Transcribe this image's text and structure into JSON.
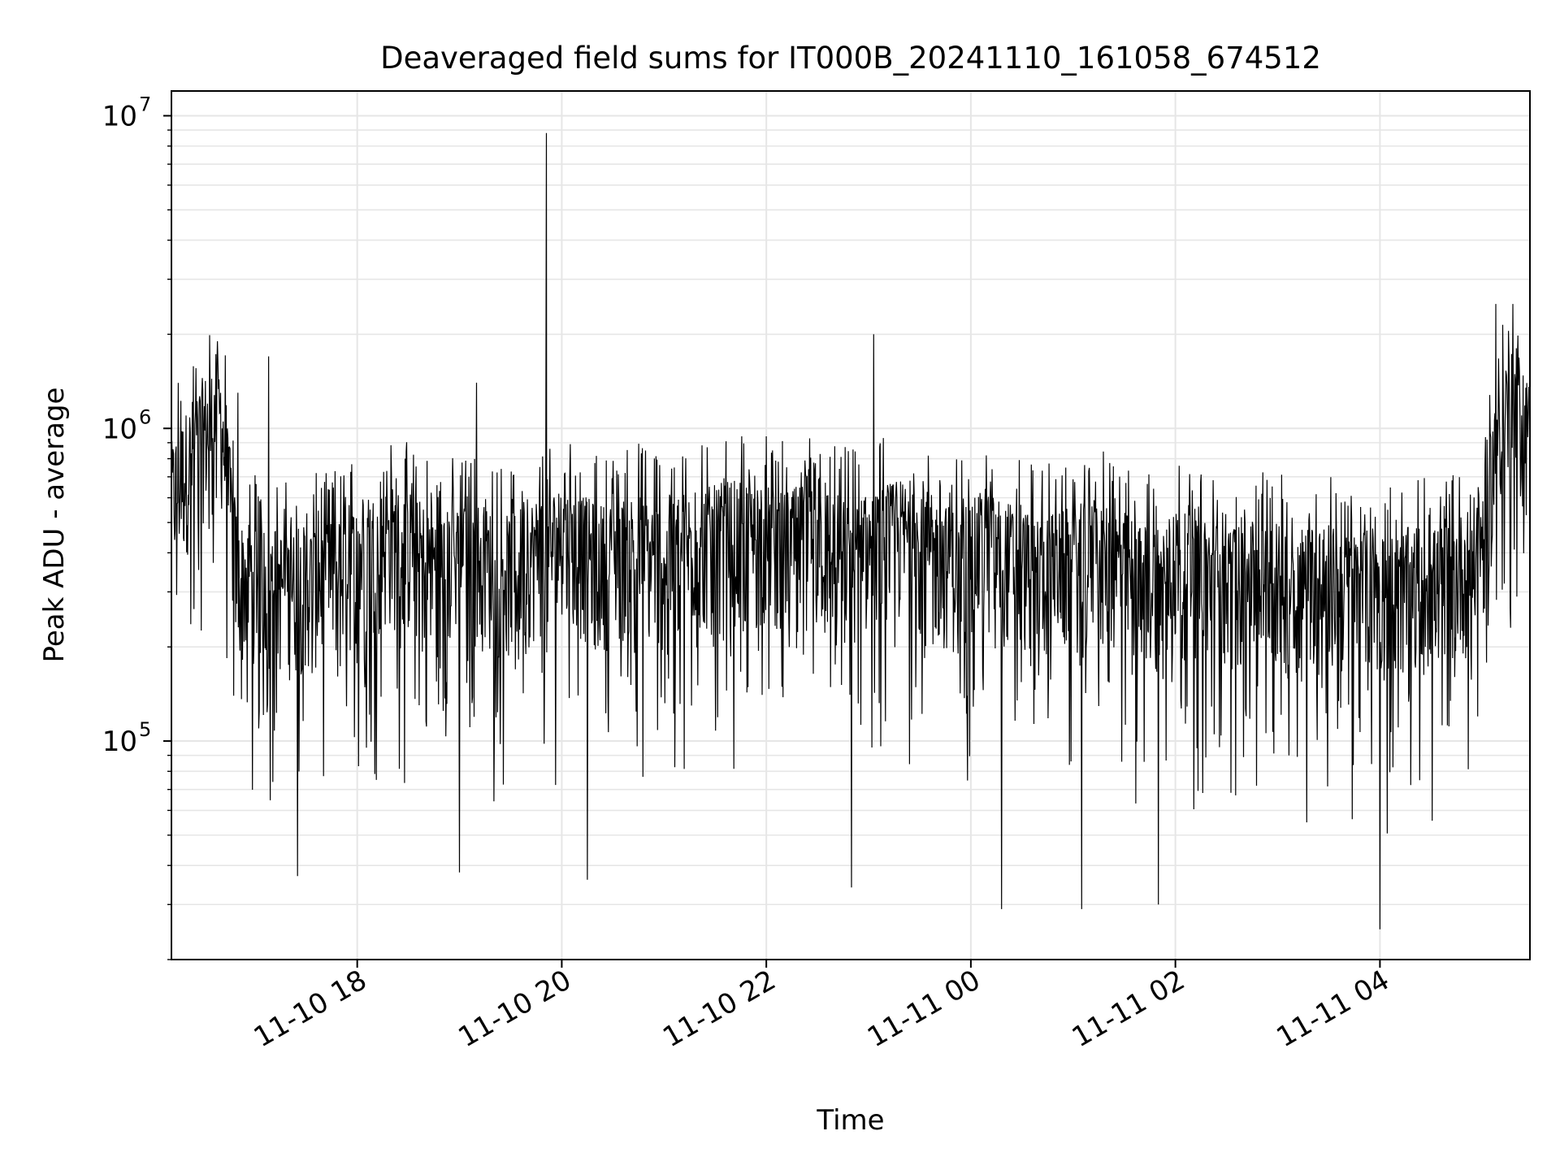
{
  "chart_data": {
    "type": "line",
    "title": "Deaveraged field sums for IT000B_20241110_161058_674512",
    "xlabel": "Time",
    "ylabel": "Peak ADU - average",
    "yscale": "log",
    "ylim": [
      20000,
      12000000
    ],
    "xlim": [
      "2024-11-10T16:11",
      "2024-11-11T05:28"
    ],
    "grid": true,
    "x_ticks": [
      {
        "value": "2024-11-10T18:00",
        "label": "11-10 18"
      },
      {
        "value": "2024-11-10T20:00",
        "label": "11-10 20"
      },
      {
        "value": "2024-11-10T22:00",
        "label": "11-10 22"
      },
      {
        "value": "2024-11-11T00:00",
        "label": "11-11 00"
      },
      {
        "value": "2024-11-11T02:00",
        "label": "11-11 02"
      },
      {
        "value": "2024-11-11T04:00",
        "label": "11-11 04"
      }
    ],
    "y_ticks": [
      {
        "value": 100000,
        "base": "10",
        "exp": "5"
      },
      {
        "value": 1000000,
        "base": "10",
        "exp": "6"
      },
      {
        "value": 10000000,
        "base": "10",
        "exp": "7"
      }
    ],
    "series": [
      {
        "color": "#000000",
        "x": [
          "2024-11-10T16:11",
          "2024-11-10T16:20",
          "2024-11-10T16:30",
          "2024-11-10T16:40",
          "2024-11-10T16:50",
          "2024-11-10T17:00",
          "2024-11-10T17:10",
          "2024-11-10T17:20",
          "2024-11-10T17:30",
          "2024-11-10T17:40",
          "2024-11-10T17:50",
          "2024-11-10T18:00",
          "2024-11-10T18:10",
          "2024-11-10T18:20",
          "2024-11-10T18:30",
          "2024-11-10T18:40",
          "2024-11-10T18:50",
          "2024-11-10T19:00",
          "2024-11-10T19:10",
          "2024-11-10T19:20",
          "2024-11-10T19:30",
          "2024-11-10T19:40",
          "2024-11-10T19:50",
          "2024-11-10T20:00",
          "2024-11-10T20:10",
          "2024-11-10T20:20",
          "2024-11-10T20:30",
          "2024-11-10T20:40",
          "2024-11-10T20:50",
          "2024-11-10T21:00",
          "2024-11-10T21:10",
          "2024-11-10T21:20",
          "2024-11-10T21:30",
          "2024-11-10T21:40",
          "2024-11-10T21:50",
          "2024-11-10T22:00",
          "2024-11-10T22:10",
          "2024-11-10T22:20",
          "2024-11-10T22:30",
          "2024-11-10T22:40",
          "2024-11-10T22:50",
          "2024-11-10T23:00",
          "2024-11-10T23:10",
          "2024-11-10T23:20",
          "2024-11-10T23:30",
          "2024-11-10T23:40",
          "2024-11-10T23:50",
          "2024-11-11T00:00",
          "2024-11-11T00:10",
          "2024-11-11T00:20",
          "2024-11-11T00:30",
          "2024-11-11T00:40",
          "2024-11-11T00:50",
          "2024-11-11T01:00",
          "2024-11-11T01:10",
          "2024-11-11T01:20",
          "2024-11-11T01:30",
          "2024-11-11T01:40",
          "2024-11-11T01:50",
          "2024-11-11T02:00",
          "2024-11-11T02:10",
          "2024-11-11T02:20",
          "2024-11-11T02:30",
          "2024-11-11T02:40",
          "2024-11-11T02:50",
          "2024-11-11T03:00",
          "2024-11-11T03:10",
          "2024-11-11T03:20",
          "2024-11-11T03:30",
          "2024-11-11T03:40",
          "2024-11-11T03:50",
          "2024-11-11T04:00",
          "2024-11-11T04:10",
          "2024-11-11T04:20",
          "2024-11-11T04:30",
          "2024-11-11T04:40",
          "2024-11-11T04:50",
          "2024-11-11T05:00",
          "2024-11-11T05:10",
          "2024-11-11T05:20",
          "2024-11-11T05:28"
        ],
        "y": [
          550000,
          700000,
          900000,
          1000000,
          300000,
          320000,
          300000,
          280000,
          300000,
          300000,
          320000,
          350000,
          380000,
          400000,
          380000,
          350000,
          330000,
          350000,
          360000,
          330000,
          320000,
          360000,
          380000,
          400000,
          380000,
          350000,
          350000,
          380000,
          380000,
          340000,
          380000,
          390000,
          400000,
          420000,
          390000,
          400000,
          380000,
          400000,
          420000,
          380000,
          360000,
          380000,
          400000,
          420000,
          400000,
          360000,
          340000,
          360000,
          380000,
          360000,
          340000,
          320000,
          330000,
          340000,
          360000,
          350000,
          330000,
          300000,
          310000,
          330000,
          320000,
          310000,
          300000,
          300000,
          310000,
          300000,
          290000,
          310000,
          300000,
          280000,
          290000,
          280000,
          280000,
          300000,
          290000,
          310000,
          330000,
          400000,
          1000000,
          1100000,
          850000
        ],
        "peaks": [
          {
            "x": "2024-11-10T16:38",
            "y": 1900000
          },
          {
            "x": "2024-11-10T16:50",
            "y": 1300000
          },
          {
            "x": "2024-11-10T17:08",
            "y": 1700000
          },
          {
            "x": "2024-11-10T19:10",
            "y": 1400000
          },
          {
            "x": "2024-11-10T19:51",
            "y": 8800000
          },
          {
            "x": "2024-11-10T23:03",
            "y": 2000000
          },
          {
            "x": "2024-11-11T05:08",
            "y": 2500000
          },
          {
            "x": "2024-11-11T05:18",
            "y": 2500000
          }
        ],
        "troughs": [
          {
            "x": "2024-11-10T17:25",
            "y": 37000
          },
          {
            "x": "2024-11-10T19:00",
            "y": 38000
          },
          {
            "x": "2024-11-10T20:15",
            "y": 36000
          },
          {
            "x": "2024-11-10T22:50",
            "y": 34000
          },
          {
            "x": "2024-11-11T00:18",
            "y": 29000
          },
          {
            "x": "2024-11-11T01:05",
            "y": 29000
          },
          {
            "x": "2024-11-11T01:50",
            "y": 30000
          },
          {
            "x": "2024-11-11T04:00",
            "y": 25000
          }
        ]
      }
    ]
  }
}
